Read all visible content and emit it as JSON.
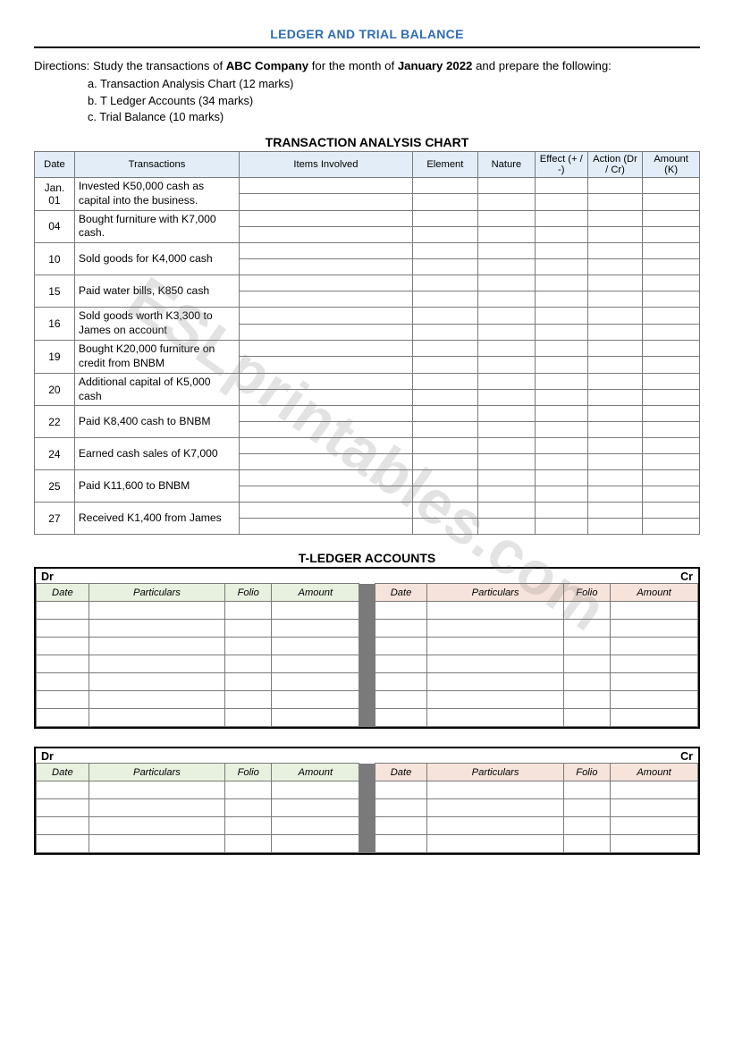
{
  "watermark_text": "ESLprintables.com",
  "page_title": "LEDGER AND TRIAL BALANCE",
  "directions": {
    "lead_prefix": "Directions: Study the transactions of ",
    "company": "ABC Company",
    "lead_mid": " for the month of ",
    "period": "January 2022",
    "lead_suffix": " and prepare the following:",
    "items": [
      "a.   Transaction Analysis Chart (12 marks)",
      "b.   T Ledger Accounts (34 marks)",
      "c.   Trial Balance (10 marks)"
    ]
  },
  "analysis": {
    "section_title": "TRANSACTION ANALYSIS CHART",
    "headers": [
      "Date",
      "Transactions",
      "Items Involved",
      "Element",
      "Nature",
      "Effect (+ / -)",
      "Action (Dr / Cr)",
      "Amount (K)"
    ],
    "col_widths": [
      "38px",
      "156px",
      "164px",
      "62px",
      "54px",
      "50px",
      "52px",
      "54px"
    ],
    "rows": [
      {
        "date": "Jan. 01",
        "trans": "Invested K50,000 cash as capital into the business."
      },
      {
        "date": "04",
        "trans": "Bought furniture with K7,000 cash."
      },
      {
        "date": "10",
        "trans": "Sold goods for K4,000 cash"
      },
      {
        "date": "15",
        "trans": "Paid water bills, K850 cash"
      },
      {
        "date": "16",
        "trans": "Sold goods worth K3,300 to James on account"
      },
      {
        "date": "19",
        "trans": "Bought  K20,000 furniture on credit from BNBM"
      },
      {
        "date": "20",
        "trans": "Additional capital of K5,000 cash"
      },
      {
        "date": "22",
        "trans": "Paid K8,400 cash to BNBM"
      },
      {
        "date": "24",
        "trans": "Earned cash sales of K7,000"
      },
      {
        "date": "25",
        "trans": "Paid K11,600 to BNBM"
      },
      {
        "date": "27",
        "trans": "Received K1,400 from James"
      }
    ]
  },
  "ledger": {
    "section_title": "T-LEDGER ACCOUNTS",
    "dr_label": "Dr",
    "cr_label": "Cr",
    "headers_left": [
      "Date",
      "Particulars",
      "Folio",
      "Amount"
    ],
    "headers_right": [
      "Date",
      "Particulars",
      "Folio",
      "Amount"
    ],
    "col_widths": [
      "54px",
      "140px",
      "48px",
      "90px",
      "16px",
      "54px",
      "140px",
      "48px",
      "90px"
    ],
    "tables": [
      {
        "blank_rows": 7
      },
      {
        "blank_rows": 4
      }
    ]
  },
  "colors": {
    "title_color": "#2f6db3",
    "analysis_header_bg": "#e2edf7",
    "ledger_dr_bg": "#e8f0df",
    "ledger_cr_bg": "#f6e3dc",
    "mid_bg": "#7a7a7a",
    "border": "#7a7a7a",
    "watermark": "rgba(128,128,128,0.22)"
  }
}
